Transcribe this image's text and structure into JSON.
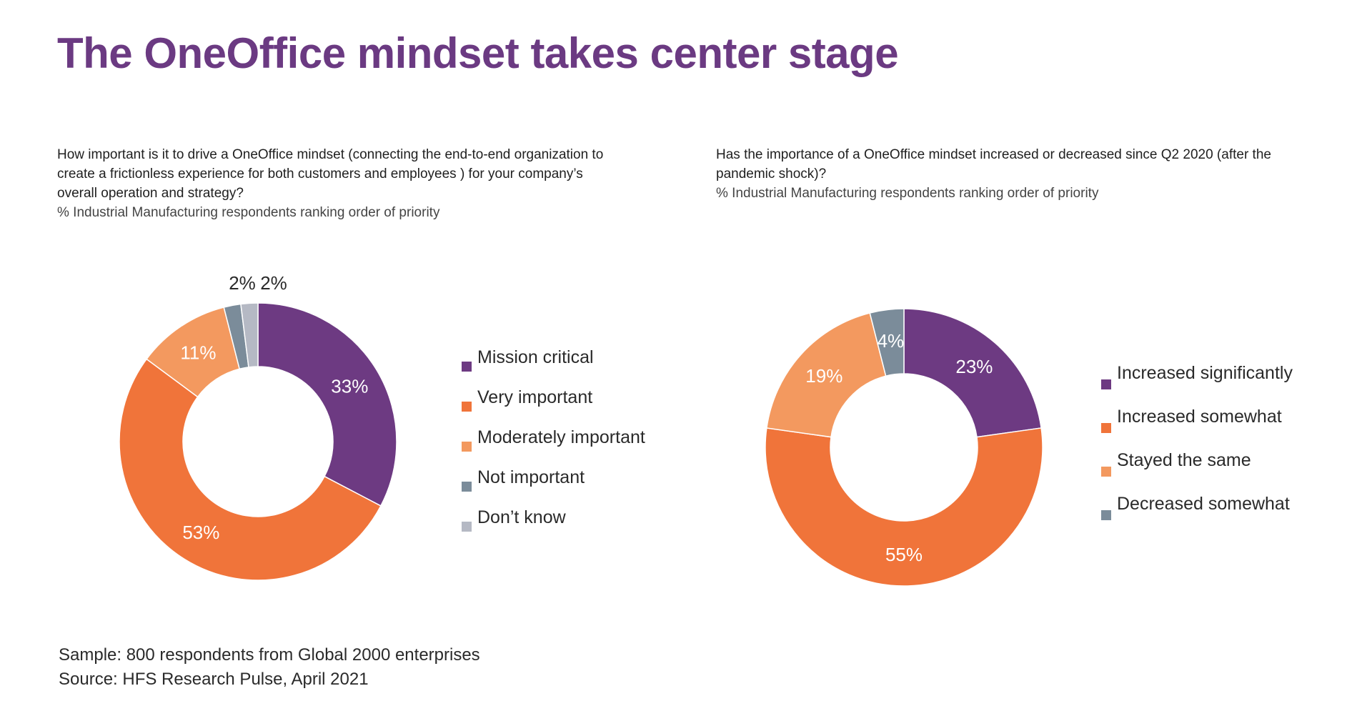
{
  "title": "The OneOffice mindset takes center stage",
  "colors": {
    "title": "#6b3a82",
    "purple": "#6d3a82",
    "orange": "#f0743a",
    "light_orange": "#f3995f",
    "slate": "#7b8c9a",
    "gray": "#b5b9c4"
  },
  "charts": {
    "left": {
      "question": "How important is it to drive a OneOffice mindset (connecting the end-to-end organization to create a frictionless experience for both customers and employees ) for your company’s overall operation and strategy?",
      "subtitle": "% Industrial Manufacturing respondents ranking order of priority"
    },
    "right": {
      "question": "Has the importance of a OneOffice mindset increased or decreased since Q2 2020 (after the pandemic shock)?",
      "subtitle": "% Industrial Manufacturing respondents ranking order of priority"
    }
  },
  "chart_data": [
    {
      "type": "pie",
      "title": "How important is it to drive a OneOffice mindset (connecting the end-to-end organization to create a frictionless experience for both customers and employees ) for your company’s overall operation and strategy?",
      "subtitle": "% Industrial Manufacturing respondents ranking order of priority",
      "donut": true,
      "legend_position": "right",
      "categories": [
        "Mission critical",
        "Very important",
        "Moderately important",
        "Not important",
        "Don’t know"
      ],
      "values": [
        33,
        53,
        11,
        2,
        2
      ],
      "labels": [
        "33%",
        "53%",
        "11%",
        "2%",
        "2%"
      ],
      "colors": [
        "#6d3a82",
        "#f0743a",
        "#f3995f",
        "#7b8c9a",
        "#b5b9c4"
      ]
    },
    {
      "type": "pie",
      "title": "Has the importance of a OneOffice mindset increased or decreased since Q2 2020 (after the pandemic shock)?",
      "subtitle": "% Industrial Manufacturing respondents ranking order of priority",
      "donut": true,
      "legend_position": "right",
      "categories": [
        "Increased significantly",
        "Increased somewhat",
        "Stayed the same",
        "Decreased somewhat"
      ],
      "values": [
        23,
        55,
        19,
        4
      ],
      "labels": [
        "23%",
        "55%",
        "19%",
        "4%"
      ],
      "colors": [
        "#6d3a82",
        "#f0743a",
        "#f3995f",
        "#7b8c9a"
      ]
    }
  ],
  "footer": {
    "sample": "Sample: 800 respondents from Global 2000 enterprises",
    "source": "Source: HFS Research Pulse, April 2021"
  }
}
